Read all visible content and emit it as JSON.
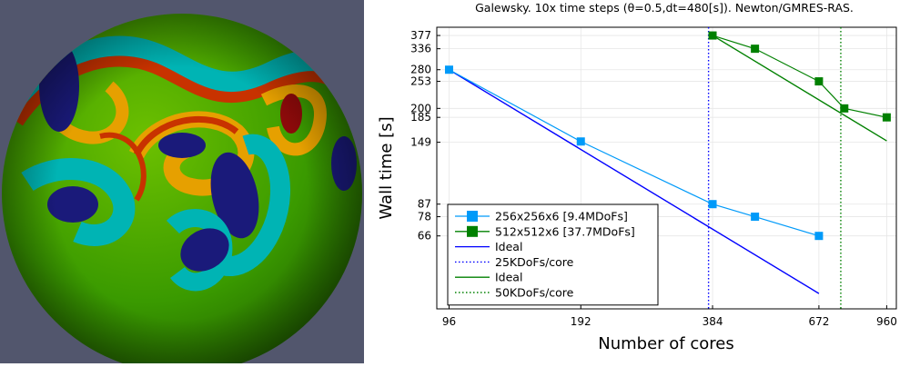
{
  "chart_data": {
    "type": "line",
    "title": "Galewsky. 10x time steps (θ=0.5,dt=480[s]). Newton/GMRES-RAS.",
    "xlabel": "Number of cores",
    "ylabel": "Wall time [s]",
    "scale": "log-log",
    "xlim": [
      90,
      1010
    ],
    "ylim": [
      35,
      405
    ],
    "xticks": [
      96,
      192,
      384,
      672,
      960
    ],
    "yticks": [
      66,
      78,
      87,
      149,
      185,
      200,
      253,
      280,
      336,
      377
    ],
    "grid": true,
    "legend_position": "bottom-left",
    "series": [
      {
        "name": "256x256x6 [9.4MDoFs]",
        "style": "line-square-marker",
        "color": "#009af9",
        "x": [
          96,
          192,
          384,
          480,
          672
        ],
        "y": [
          280,
          150,
          87,
          78,
          66
        ]
      },
      {
        "name": "512x512x6 [37.7MDoFs]",
        "style": "line-square-marker",
        "color": "#008000",
        "x": [
          384,
          480,
          672,
          768,
          960
        ],
        "y": [
          377,
          336,
          253,
          200,
          185
        ]
      },
      {
        "name": "Ideal",
        "style": "solid",
        "color": "#0000ff",
        "x": [
          96,
          672
        ],
        "y": [
          280,
          40
        ]
      },
      {
        "name": "25KDoFs/core",
        "style": "dotted-vertical",
        "color": "#0000ff",
        "x": [
          376
        ]
      },
      {
        "name": "Ideal",
        "style": "solid",
        "color": "#008000",
        "x": [
          384,
          960
        ],
        "y": [
          377,
          150.8
        ]
      },
      {
        "name": "50KDoFs/core",
        "style": "dotted-vertical",
        "color": "#008000",
        "x": [
          754
        ]
      }
    ]
  },
  "image_panel": {
    "background": "#52566d",
    "colormap": [
      "#1a1a7a",
      "#00b4b4",
      "#3ca000",
      "#e6a000",
      "#c83200",
      "#8c0a0a"
    ]
  }
}
